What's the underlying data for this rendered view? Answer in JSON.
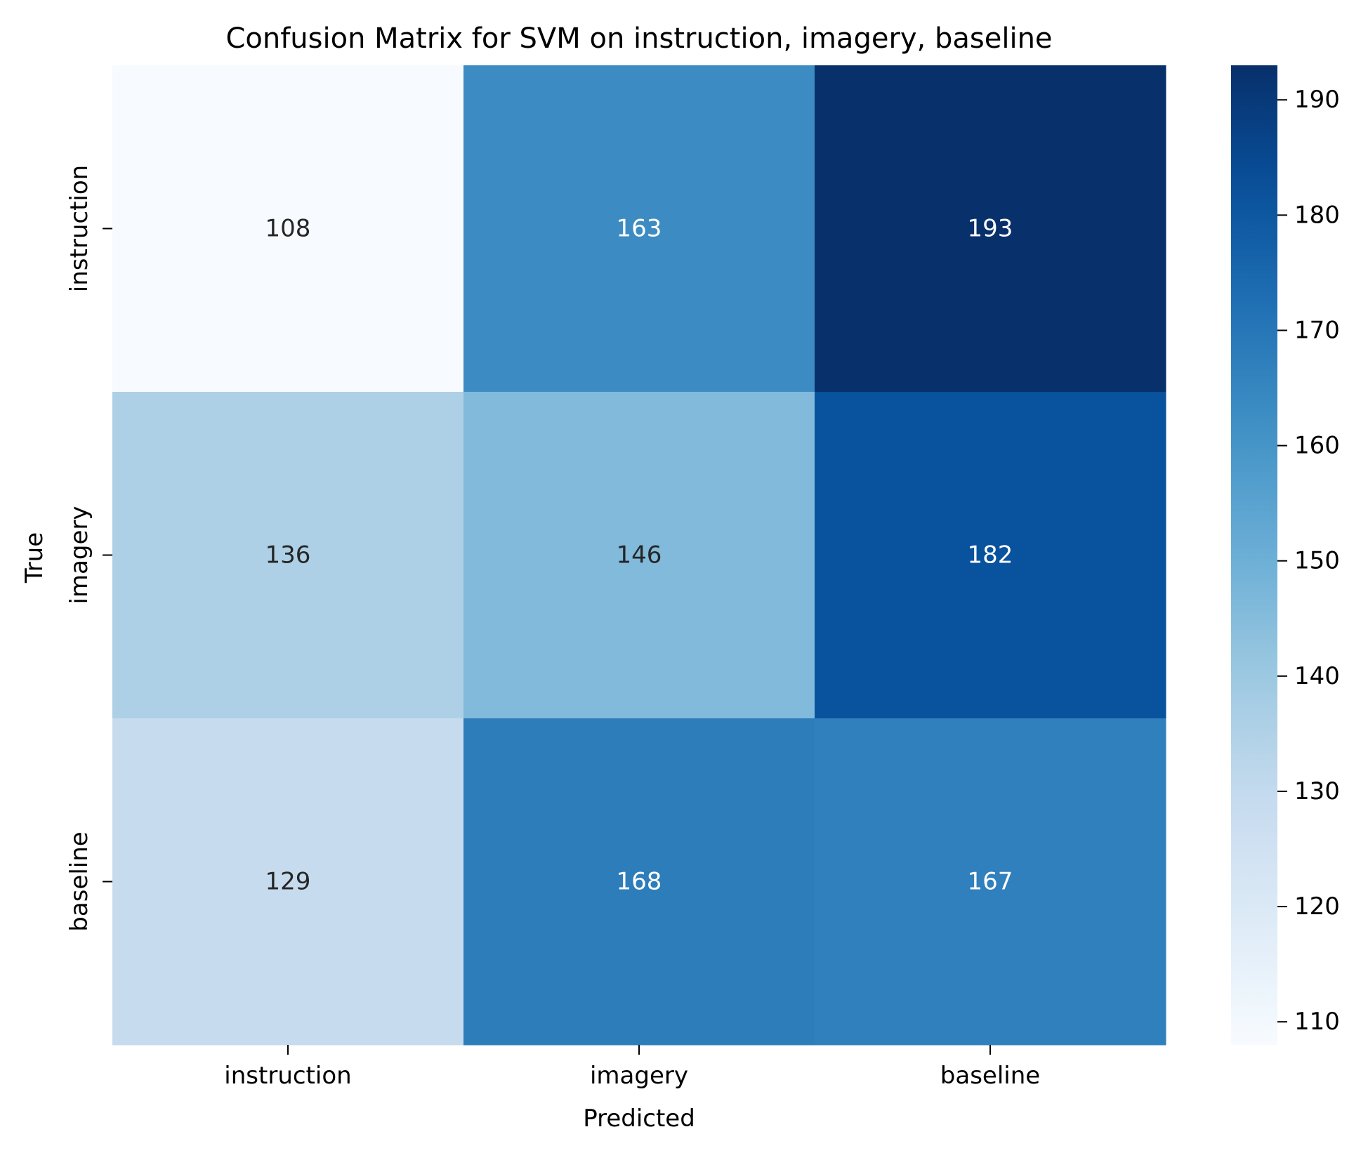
{
  "chart_data": {
    "type": "heatmap",
    "title": "Confusion Matrix for SVM on instruction, imagery, baseline",
    "xlabel": "Predicted",
    "ylabel": "True",
    "x_categories": [
      "instruction",
      "imagery",
      "baseline"
    ],
    "y_categories": [
      "instruction",
      "imagery",
      "baseline"
    ],
    "values": [
      [
        108,
        163,
        193
      ],
      [
        136,
        146,
        182
      ],
      [
        129,
        168,
        167
      ]
    ],
    "colormap": "Blues",
    "color_range": [
      108,
      193
    ],
    "colorbar_ticks": [
      110,
      120,
      130,
      140,
      150,
      160,
      170,
      180,
      190
    ],
    "annotation_colors": {
      "dark_cells": "#ffffff",
      "light_cells": "#262626"
    }
  }
}
